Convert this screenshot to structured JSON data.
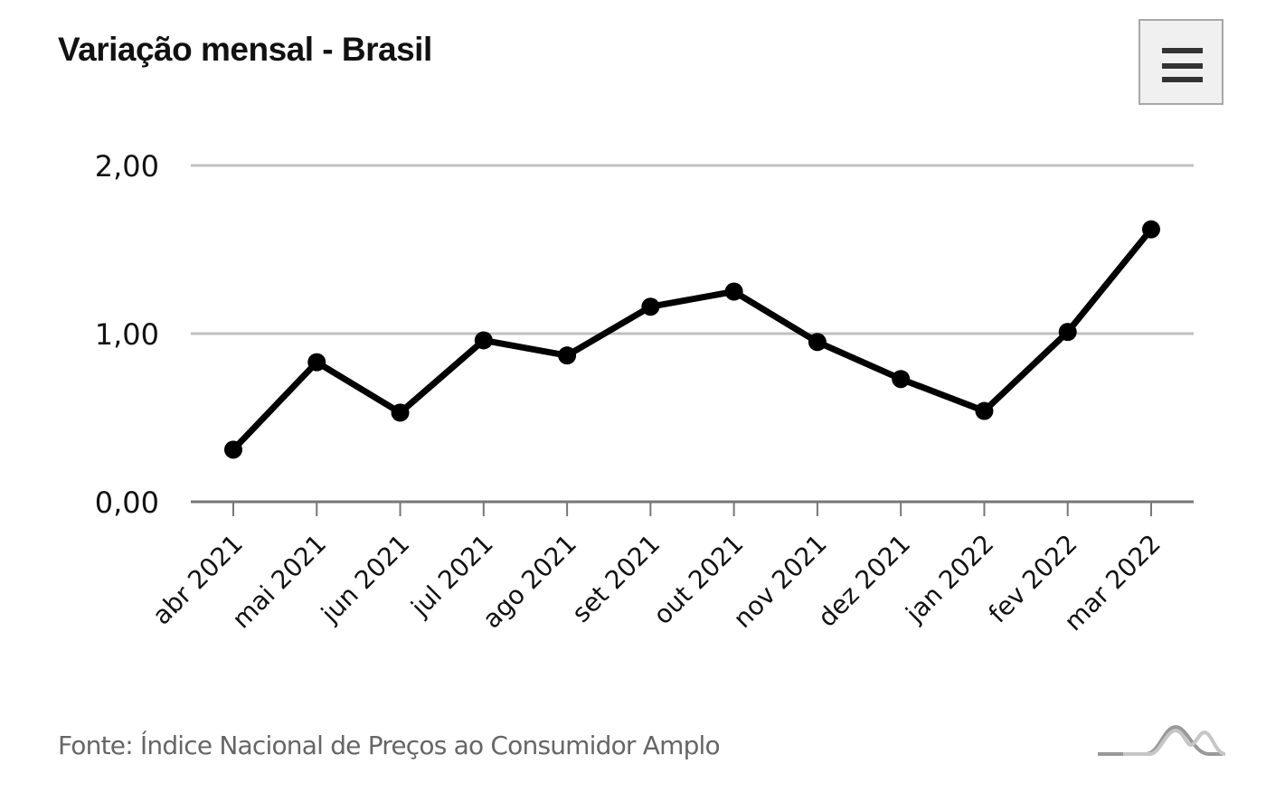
{
  "header": {
    "title": "Variação mensal - Brasil",
    "menu_icon": "hamburger-menu-icon"
  },
  "chart_data": {
    "type": "line",
    "title": "Variação mensal - Brasil",
    "xlabel": "",
    "ylabel": "",
    "categories": [
      "abr 2021",
      "mai 2021",
      "jun 2021",
      "jul 2021",
      "ago 2021",
      "set 2021",
      "out 2021",
      "nov 2021",
      "dez 2021",
      "jan 2022",
      "fev 2022",
      "mar 2022"
    ],
    "series": [
      {
        "name": "Variação mensal",
        "values": [
          0.31,
          0.83,
          0.53,
          0.96,
          0.87,
          1.16,
          1.25,
          0.95,
          0.73,
          0.54,
          1.01,
          1.62
        ],
        "color": "#000000"
      }
    ],
    "ylim": [
      0,
      2
    ],
    "yticks": [
      0,
      1,
      2
    ],
    "ytick_labels": [
      "0,00",
      "1,00",
      "2,00"
    ],
    "grid": true,
    "legend": "none"
  },
  "footer": {
    "source": "Fonte: Índice Nacional de Preços ao Consumidor Amplo",
    "logo_icon": "mountain-logo-icon"
  },
  "colors": {
    "line": "#000000",
    "grid": "#c0c0c0",
    "axis": "#777777",
    "source_text": "#666666"
  }
}
